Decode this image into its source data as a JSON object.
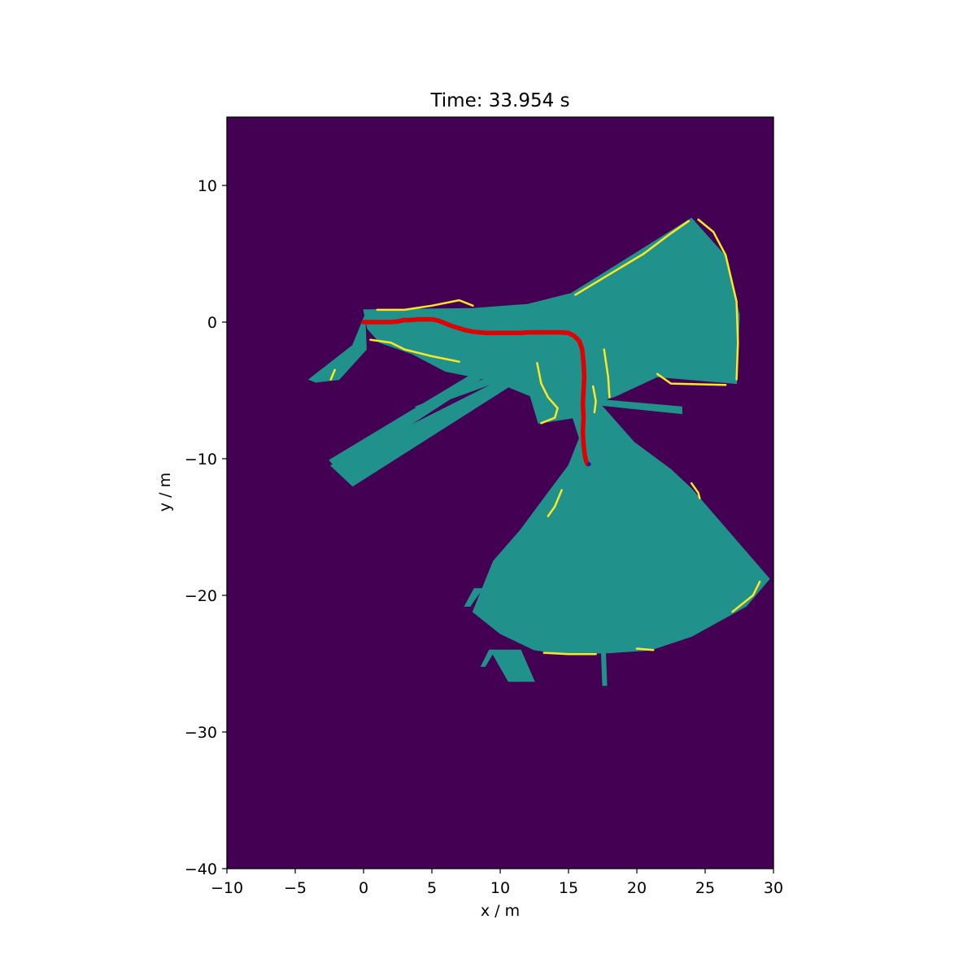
{
  "chart_data": {
    "type": "heatmap",
    "title": "Time: 33.954 s",
    "xlabel": "x / m",
    "ylabel": "y / m",
    "xlim": [
      -10,
      30
    ],
    "ylim": [
      -40,
      15
    ],
    "xticks": [
      -10,
      -5,
      0,
      5,
      10,
      15,
      20,
      25,
      30
    ],
    "yticks": [
      -40,
      -30,
      -20,
      -10,
      0,
      10
    ],
    "grid": false,
    "legend": "none",
    "colors": {
      "unknown": "#440154",
      "free": "#21918c",
      "occupied": "#fde725",
      "trajectory": "#e00000",
      "robot": "#1f1f9a"
    },
    "free_regions": [
      [
        [
          0.0,
          0.9
        ],
        [
          8.0,
          1.0
        ],
        [
          12.0,
          1.3
        ],
        [
          15.2,
          2.1
        ],
        [
          24.0,
          7.6
        ],
        [
          26.5,
          4.8
        ],
        [
          27.5,
          0.5
        ],
        [
          27.3,
          -4.5
        ],
        [
          21.5,
          -4.0
        ],
        [
          18.5,
          -5.4
        ],
        [
          16.8,
          -6.0
        ],
        [
          15.4,
          -7.0
        ],
        [
          12.8,
          -7.4
        ],
        [
          12.2,
          -5.4
        ],
        [
          9.5,
          -4.3
        ],
        [
          6.0,
          -3.6
        ],
        [
          3.5,
          -2.3
        ],
        [
          1.2,
          -1.5
        ],
        [
          0.3,
          -0.5
        ]
      ],
      [
        [
          0.1,
          0.5
        ],
        [
          -0.8,
          -1.7
        ],
        [
          -4.0,
          -4.2
        ],
        [
          -3.5,
          -4.4
        ],
        [
          -1.8,
          -4.2
        ],
        [
          0.2,
          -2.0
        ]
      ],
      [
        [
          15.0,
          -6.0
        ],
        [
          16.2,
          -5.2
        ],
        [
          17.5,
          -6.2
        ],
        [
          19.8,
          -8.8
        ],
        [
          22.5,
          -10.8
        ],
        [
          24.0,
          -12.2
        ],
        [
          29.7,
          -18.8
        ],
        [
          28.0,
          -20.8
        ],
        [
          24.0,
          -23.0
        ],
        [
          21.0,
          -24.0
        ],
        [
          18.0,
          -24.2
        ],
        [
          15.0,
          -24.3
        ],
        [
          12.5,
          -24.0
        ],
        [
          10.0,
          -22.8
        ],
        [
          8.0,
          -21.2
        ],
        [
          9.5,
          -17.5
        ],
        [
          11.5,
          -15.2
        ],
        [
          13.5,
          -12.5
        ],
        [
          15.0,
          -10.5
        ],
        [
          15.8,
          -8.5
        ]
      ],
      [
        [
          -2.5,
          -10.1
        ],
        [
          8.3,
          -3.6
        ],
        [
          9.0,
          -3.9
        ],
        [
          -1.8,
          -10.9
        ]
      ],
      [
        [
          -2.4,
          -10.5
        ],
        [
          10.5,
          -4.0
        ],
        [
          11.0,
          -4.5
        ],
        [
          -0.8,
          -12.0
        ]
      ],
      [
        [
          3.8,
          -6.2
        ],
        [
          13.0,
          -2.5
        ],
        [
          13.3,
          -3.1
        ],
        [
          4.2,
          -6.4
        ]
      ],
      [
        [
          16.5,
          -5.6
        ],
        [
          23.3,
          -6.2
        ],
        [
          23.3,
          -6.7
        ],
        [
          16.5,
          -6.0
        ]
      ],
      [
        [
          9.3,
          -24.0
        ],
        [
          11.5,
          -24.0
        ],
        [
          12.5,
          -26.3
        ],
        [
          10.6,
          -26.3
        ]
      ],
      [
        [
          17.4,
          -24.0
        ],
        [
          17.7,
          -24.0
        ],
        [
          17.8,
          -26.6
        ],
        [
          17.5,
          -26.6
        ]
      ],
      [
        [
          9.2,
          -24.0
        ],
        [
          9.6,
          -24.0
        ],
        [
          8.9,
          -25.2
        ],
        [
          8.6,
          -25.2
        ]
      ],
      [
        [
          8.1,
          -19.5
        ],
        [
          8.7,
          -19.5
        ],
        [
          7.8,
          -20.8
        ],
        [
          7.4,
          -20.8
        ]
      ]
    ],
    "obstacles": [
      [
        [
          1.0,
          0.9
        ],
        [
          3.0,
          0.9
        ],
        [
          5.0,
          1.2
        ],
        [
          7.0,
          1.6
        ],
        [
          8.0,
          1.2
        ]
      ],
      [
        [
          0.5,
          -1.3
        ],
        [
          2.0,
          -1.5
        ],
        [
          3.0,
          -2.0
        ],
        [
          5.0,
          -2.5
        ],
        [
          7.0,
          -2.9
        ]
      ],
      [
        [
          15.5,
          2.0
        ],
        [
          18.0,
          3.5
        ],
        [
          20.5,
          5.0
        ],
        [
          22.5,
          6.5
        ],
        [
          23.8,
          7.4
        ]
      ],
      [
        [
          24.5,
          7.5
        ],
        [
          25.6,
          6.6
        ],
        [
          26.5,
          4.9
        ],
        [
          27.3,
          1.5
        ],
        [
          27.4,
          -1.5
        ],
        [
          27.3,
          -4.2
        ]
      ],
      [
        [
          21.5,
          -3.8
        ],
        [
          22.5,
          -4.5
        ],
        [
          26.5,
          -4.6
        ]
      ],
      [
        [
          14.5,
          -12.3
        ],
        [
          14.0,
          -13.5
        ],
        [
          13.5,
          -14.2
        ]
      ],
      [
        [
          24.0,
          -11.8
        ],
        [
          24.5,
          -12.5
        ],
        [
          24.6,
          -12.9
        ]
      ],
      [
        [
          29.0,
          -19.0
        ],
        [
          28.5,
          -20.0
        ],
        [
          27.0,
          -21.2
        ]
      ],
      [
        [
          13.2,
          -24.2
        ],
        [
          15.0,
          -24.3
        ],
        [
          17.0,
          -24.3
        ]
      ],
      [
        [
          20.0,
          -23.9
        ],
        [
          21.2,
          -24.0
        ]
      ],
      [
        [
          12.7,
          -3.0
        ],
        [
          13.0,
          -4.5
        ],
        [
          13.5,
          -5.5
        ],
        [
          14.2,
          -6.3
        ],
        [
          14.0,
          -7.0
        ],
        [
          13.0,
          -7.4
        ]
      ],
      [
        [
          17.6,
          -2.0
        ],
        [
          17.9,
          -4.0
        ],
        [
          18.0,
          -5.5
        ]
      ],
      [
        [
          16.8,
          -4.7
        ],
        [
          17.0,
          -5.8
        ],
        [
          16.9,
          -6.6
        ]
      ],
      [
        [
          -2.1,
          -3.5
        ],
        [
          -2.4,
          -4.2
        ]
      ]
    ],
    "trajectory": {
      "x": [
        0.0,
        0.5,
        1.0,
        1.5,
        2.0,
        2.5,
        3.0,
        3.5,
        4.0,
        4.5,
        5.0,
        5.5,
        6.0,
        6.5,
        7.0,
        7.5,
        8.0,
        8.5,
        9.0,
        9.5,
        10.0,
        10.5,
        11.0,
        11.5,
        12.0,
        12.5,
        13.0,
        13.5,
        14.0,
        14.5,
        15.0,
        15.4,
        15.8,
        16.0,
        16.1,
        16.15,
        16.1,
        16.05,
        16.1,
        16.05,
        16.1,
        16.2,
        16.3,
        16.4
      ],
      "y": [
        0.0,
        0.0,
        0.0,
        0.0,
        0.0,
        0.05,
        0.15,
        0.15,
        0.2,
        0.2,
        0.2,
        0.1,
        -0.1,
        -0.3,
        -0.45,
        -0.6,
        -0.7,
        -0.75,
        -0.8,
        -0.8,
        -0.8,
        -0.8,
        -0.8,
        -0.8,
        -0.75,
        -0.75,
        -0.75,
        -0.75,
        -0.75,
        -0.75,
        -0.8,
        -1.0,
        -1.4,
        -2.0,
        -3.0,
        -4.0,
        -5.0,
        -6.0,
        -7.0,
        -8.0,
        -9.0,
        -9.8,
        -10.2,
        -10.4
      ]
    },
    "robot_position": [
      16.5,
      -10.4
    ]
  }
}
